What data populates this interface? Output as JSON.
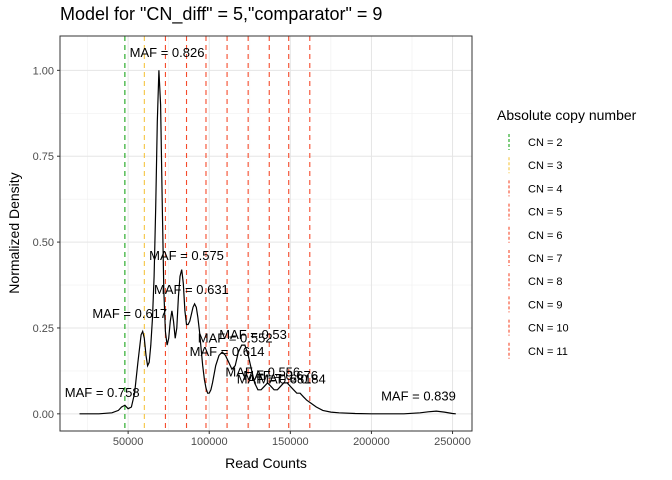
{
  "chart_data": {
    "type": "line",
    "title": "Model for \"CN_diff\" = 5,\"comparator\" = 9",
    "xlabel": "Read Counts",
    "ylabel": "Normalized Density",
    "xlim": [
      8000,
      262000
    ],
    "ylim": [
      -0.05,
      1.1
    ],
    "x_ticks": [
      50000,
      100000,
      150000,
      200000,
      250000
    ],
    "x_tick_labels": [
      "50000",
      "100000",
      "150000",
      "200000",
      "250000"
    ],
    "y_ticks": [
      0,
      0.25,
      0.5,
      0.75,
      1.0
    ],
    "y_tick_labels": [
      "0.00",
      "0.25",
      "0.50",
      "0.75",
      "1.00"
    ],
    "grid": true,
    "series": [
      {
        "x": [
          20000,
          32000,
          40000,
          44000,
          46000,
          48000,
          50000,
          52000,
          54000,
          56000,
          58000,
          59000,
          60000,
          61000,
          62000,
          63000,
          64000,
          65000,
          66000,
          67000,
          68000,
          69000,
          70000,
          71000,
          72000,
          73000,
          74000,
          75000,
          76000,
          77000,
          78000,
          79000,
          80000,
          81000,
          82000,
          83000,
          84000,
          85000,
          86000,
          87000,
          88000,
          89000,
          90000,
          91000,
          92000,
          93000,
          94000,
          95000,
          96000,
          97000,
          98000,
          99000,
          100000,
          101000,
          102000,
          104000,
          106000,
          108000,
          110000,
          112000,
          114000,
          116000,
          118000,
          120000,
          122000,
          124000,
          126000,
          128000,
          130000,
          132000,
          134000,
          136000,
          138000,
          140000,
          142000,
          144000,
          146000,
          148000,
          150000,
          152000,
          154000,
          156000,
          158000,
          160000,
          163000,
          166000,
          170000,
          175000,
          180000,
          190000,
          200000,
          210000,
          220000,
          230000,
          235000,
          240000,
          245000,
          250000,
          252000
        ],
        "y": [
          0.0,
          0.0,
          0.003,
          0.01,
          0.02,
          0.025,
          0.015,
          0.02,
          0.06,
          0.15,
          0.23,
          0.24,
          0.22,
          0.17,
          0.14,
          0.15,
          0.2,
          0.28,
          0.4,
          0.6,
          0.85,
          1.0,
          0.9,
          0.62,
          0.36,
          0.24,
          0.2,
          0.22,
          0.27,
          0.3,
          0.27,
          0.22,
          0.25,
          0.34,
          0.4,
          0.42,
          0.38,
          0.3,
          0.26,
          0.26,
          0.27,
          0.29,
          0.31,
          0.32,
          0.31,
          0.28,
          0.24,
          0.19,
          0.14,
          0.1,
          0.075,
          0.06,
          0.06,
          0.07,
          0.09,
          0.14,
          0.17,
          0.18,
          0.17,
          0.15,
          0.13,
          0.14,
          0.18,
          0.2,
          0.2,
          0.17,
          0.13,
          0.09,
          0.07,
          0.07,
          0.08,
          0.09,
          0.08,
          0.07,
          0.07,
          0.08,
          0.09,
          0.09,
          0.08,
          0.07,
          0.06,
          0.06,
          0.05,
          0.04,
          0.03,
          0.02,
          0.01,
          0.005,
          0.003,
          0.001,
          0.0,
          0.0,
          0.0,
          0.003,
          0.006,
          0.008,
          0.005,
          0.001,
          0.0
        ]
      }
    ],
    "vertical_lines": [
      {
        "cn": "CN = 2",
        "x": 48000,
        "color": "#1aa51a"
      },
      {
        "cn": "CN = 3",
        "x": 60000,
        "color": "#f5c542"
      },
      {
        "cn": "CN = 4",
        "x": 73000,
        "color": "#f54b2c"
      },
      {
        "cn": "CN = 5",
        "x": 86000,
        "color": "#f54b2c"
      },
      {
        "cn": "CN = 6",
        "x": 98000,
        "color": "#f54b2c"
      },
      {
        "cn": "CN = 7",
        "x": 111000,
        "color": "#f54b2c"
      },
      {
        "cn": "CN = 8",
        "x": 124000,
        "color": "#f54b2c"
      },
      {
        "cn": "CN = 9",
        "x": 137000,
        "color": "#f54b2c"
      },
      {
        "cn": "CN = 10",
        "x": 149000,
        "color": "#f54b2c"
      },
      {
        "cn": "CN = 11",
        "x": 162000,
        "color": "#f54b2c"
      }
    ],
    "annotations": [
      {
        "text": "MAF = 0.826",
        "x": 74000,
        "y": 1.05
      },
      {
        "text": "MAF = 0.575",
        "x": 86000,
        "y": 0.46
      },
      {
        "text": "MAF = 0.631",
        "x": 89000,
        "y": 0.36
      },
      {
        "text": "MAF = 0.617",
        "x": 51000,
        "y": 0.29
      },
      {
        "text": "MAF = 0.552",
        "x": 116000,
        "y": 0.22
      },
      {
        "text": "MAF = 0.53",
        "x": 127000,
        "y": 0.23
      },
      {
        "text": "MAF = 0.614",
        "x": 111000,
        "y": 0.18
      },
      {
        "text": "MAF = 0.758",
        "x": 34000,
        "y": 0.06
      },
      {
        "text": "MAF = 0.556",
        "x": 133000,
        "y": 0.12
      },
      {
        "text": "MAF = 0.676",
        "x": 144000,
        "y": 0.11
      },
      {
        "text": "MAF = 0.681",
        "x": 140000,
        "y": 0.1
      },
      {
        "text": "MAF = 0.84",
        "x": 151000,
        "y": 0.1
      },
      {
        "text": "MAF = 0.839",
        "x": 229000,
        "y": 0.05
      }
    ],
    "legend": {
      "title": "Absolute copy number",
      "position": "right",
      "entries": [
        "CN = 2",
        "CN = 3",
        "CN = 4",
        "CN = 5",
        "CN = 6",
        "CN = 7",
        "CN = 8",
        "CN = 9",
        "CN = 10",
        "CN = 11"
      ]
    }
  }
}
